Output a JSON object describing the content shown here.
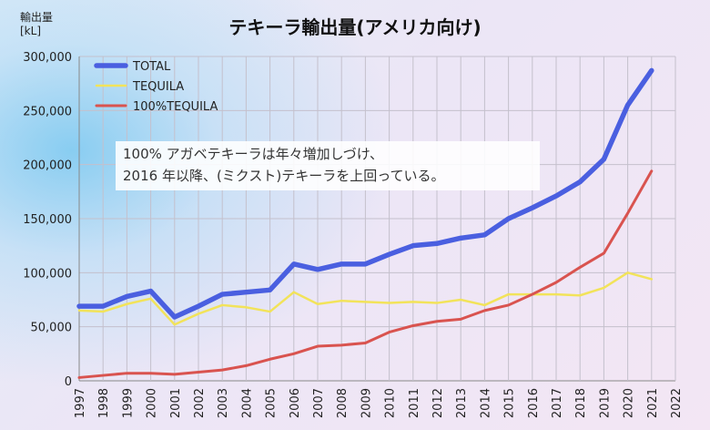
{
  "chart_data": {
    "type": "line",
    "title": "テキーラ輸出量(アメリカ向け)",
    "ylabel": [
      "輸出量",
      "[kL]"
    ],
    "xlabel": "",
    "x": [
      1997,
      1998,
      1999,
      2000,
      2001,
      2002,
      2003,
      2004,
      2005,
      2006,
      2007,
      2008,
      2009,
      2010,
      2011,
      2012,
      2013,
      2014,
      2015,
      2016,
      2017,
      2018,
      2019,
      2020,
      2021
    ],
    "xlim": [
      1997,
      2022
    ],
    "x_ticks": [
      "1997",
      "1998",
      "1999",
      "2000",
      "2001",
      "2002",
      "2003",
      "2004",
      "2005",
      "2006",
      "2007",
      "2008",
      "2009",
      "2010",
      "2011",
      "2012",
      "2013",
      "2014",
      "2015",
      "2016",
      "2017",
      "2018",
      "2019",
      "2020",
      "2021",
      "2022"
    ],
    "ylim": [
      0,
      300000
    ],
    "y_ticks": [
      "0",
      "50,000",
      "100,000",
      "150,000",
      "200,000",
      "250,000",
      "300,000"
    ],
    "grid": true,
    "legend_position": "top-left",
    "series": [
      {
        "name": "TOTAL",
        "color": "#4a5fe0",
        "values": [
          69000,
          69000,
          78000,
          83000,
          59000,
          69000,
          80000,
          82000,
          84000,
          108000,
          103000,
          108000,
          108000,
          117000,
          125000,
          127000,
          132000,
          135000,
          150000,
          160000,
          171000,
          184000,
          205000,
          255000,
          287000
        ]
      },
      {
        "name": "TEQUILA",
        "color": "#f2e35a",
        "values": [
          65000,
          64000,
          71000,
          76000,
          52000,
          62000,
          70000,
          68000,
          64000,
          82000,
          71000,
          74000,
          73000,
          72000,
          73000,
          72000,
          75000,
          70000,
          80000,
          80000,
          80000,
          79000,
          86000,
          100000,
          94000
        ]
      },
      {
        "name": "100%TEQUILA",
        "color": "#d9534f",
        "values": [
          3000,
          5000,
          7000,
          7000,
          6000,
          8000,
          10000,
          14000,
          20000,
          25000,
          32000,
          33000,
          35000,
          45000,
          51000,
          55000,
          57000,
          65000,
          70000,
          80000,
          91000,
          105000,
          118000,
          155000,
          194000
        ]
      }
    ],
    "annotation": [
      "100% アガベテキーラは年々増加しづけ、",
      "2016 年以降、(ミクスト)テキーラを上回っている。"
    ]
  }
}
